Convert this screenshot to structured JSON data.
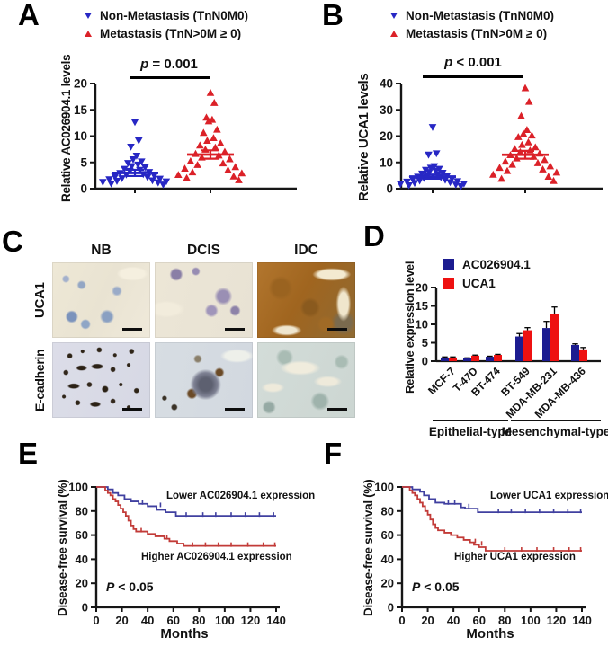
{
  "panels": {
    "A": {
      "label": "A",
      "sig_var": "p",
      "sig_rest": " = 0.001"
    },
    "B": {
      "label": "B",
      "sig_var": "p",
      "sig_rest": " < 0.001"
    },
    "C": {
      "label": "C",
      "columns": [
        "NB",
        "DCIS",
        "IDC"
      ],
      "rows": [
        "UCA1",
        "E-cadherin"
      ]
    },
    "D": {
      "label": "D"
    },
    "E": {
      "label": "E",
      "p_var": "P",
      "p_rest": " < 0.05"
    },
    "F": {
      "label": "F",
      "p_var": "P",
      "p_rest": " < 0.05"
    }
  },
  "colors": {
    "scatter_blue": "#2727C4",
    "scatter_red": "#DB2128",
    "bar_blue": "#1C1C90",
    "bar_red": "#EE1111",
    "km_blue": "#4040A0",
    "km_red": "#C23B38",
    "axis": "#161616"
  },
  "chart_data": [
    {
      "id": "A",
      "type": "scatter",
      "ylabel": "Relative AC026904.1 levels",
      "ylim": [
        0,
        20
      ],
      "yticks": [
        0,
        5,
        10,
        15,
        20
      ],
      "significance": "p = 0.001",
      "groups": [
        {
          "name": "Non-Metastasis (TnN0M0)",
          "marker": "triangle-down",
          "color": "#2727C4",
          "mean": 3.0,
          "sem": 0.6,
          "values": [
            12.7,
            9.2,
            8.0,
            6.3,
            5.6,
            5.2,
            4.9,
            4.6,
            4.3,
            4.1,
            3.8,
            3.6,
            3.4,
            3.2,
            3.0,
            2.8,
            2.7,
            2.5,
            2.3,
            2.2,
            2.0,
            1.9,
            1.8,
            1.6,
            1.5,
            1.4,
            1.3,
            1.2,
            1.0,
            0.8
          ]
        },
        {
          "name": "Metastasis (TnN>0M ≥ 0)",
          "marker": "triangle-up",
          "color": "#DB2128",
          "mean": 6.5,
          "sem": 0.8,
          "values": [
            18.2,
            16.3,
            13.5,
            13.1,
            12.8,
            11.2,
            10.6,
            9.6,
            9.1,
            8.6,
            8.2,
            7.8,
            7.4,
            7.0,
            6.6,
            6.3,
            5.9,
            5.6,
            5.2,
            4.8,
            4.5,
            4.1,
            3.8,
            3.5,
            3.1,
            2.9,
            2.6,
            2.3,
            2.0,
            1.6
          ]
        }
      ]
    },
    {
      "id": "B",
      "type": "scatter",
      "ylabel": "Relative UCA1 levels",
      "ylim": [
        0,
        40
      ],
      "yticks": [
        0,
        10,
        20,
        30,
        40
      ],
      "significance": "p < 0.001",
      "groups": [
        {
          "name": "Non-Metastasis (TnN0M0)",
          "marker": "triangle-down",
          "color": "#2727C4",
          "mean": 4.6,
          "sem": 0.8,
          "values": [
            23.5,
            13.5,
            13.0,
            8.6,
            8.0,
            7.6,
            7.2,
            6.8,
            6.4,
            6.1,
            5.8,
            5.5,
            5.2,
            4.9,
            4.6,
            4.4,
            4.1,
            3.9,
            3.6,
            3.4,
            3.1,
            2.9,
            2.7,
            2.5,
            2.2,
            2.0,
            1.8,
            1.6,
            1.3,
            1.0
          ]
        },
        {
          "name": "Metastasis (TnN>0M ≥ 0)",
          "marker": "triangle-up",
          "color": "#DB2128",
          "mean": 12.9,
          "sem": 1.5,
          "values": [
            38.2,
            33.0,
            27.6,
            22.3,
            20.8,
            20.2,
            19.6,
            17.6,
            16.6,
            15.7,
            15.1,
            14.5,
            13.9,
            13.3,
            12.7,
            12.1,
            11.5,
            10.9,
            10.3,
            9.7,
            9.1,
            8.5,
            7.9,
            7.3,
            6.7,
            6.1,
            5.3,
            4.5,
            3.7,
            2.9
          ]
        }
      ]
    },
    {
      "id": "D",
      "type": "bar",
      "ylabel": "Relative expression level",
      "ylim": [
        0,
        20
      ],
      "yticks": [
        0,
        5,
        10,
        15,
        20
      ],
      "categories": [
        "MCF-7",
        "T-47D",
        "BT-474",
        "BT-549",
        "MDA-MB-231",
        "MDA-MB-436"
      ],
      "group_labels": [
        {
          "label": "Epithelial-type",
          "span": [
            0,
            2
          ]
        },
        {
          "label": "Mesenchymal-type",
          "span": [
            3,
            5
          ]
        }
      ],
      "series": [
        {
          "name": "AC026904.1",
          "color": "#1C1C90",
          "values": [
            1.0,
            0.8,
            1.2,
            6.7,
            9.0,
            4.4
          ],
          "errors": [
            0.15,
            0.1,
            0.15,
            0.8,
            1.8,
            0.3
          ]
        },
        {
          "name": "UCA1",
          "color": "#EE1111",
          "values": [
            1.0,
            1.5,
            1.7,
            8.4,
            12.7,
            3.2
          ],
          "errors": [
            0.15,
            0.15,
            0.15,
            0.7,
            2.0,
            0.5
          ]
        }
      ]
    },
    {
      "id": "E",
      "type": "line",
      "subtype": "kaplan-meier",
      "xlabel": "Months",
      "ylabel": "Disease-free survival (%)",
      "xlim": [
        0,
        140
      ],
      "xticks": [
        0,
        20,
        40,
        60,
        80,
        100,
        120,
        140
      ],
      "ylim": [
        0,
        100
      ],
      "yticks": [
        0,
        20,
        40,
        60,
        80,
        100
      ],
      "p_text": "P < 0.05",
      "series": [
        {
          "name": "Lower AC026904.1 expression",
          "color": "#4040A0",
          "steps": [
            [
              0,
              100
            ],
            [
              9,
              100
            ],
            [
              9,
              98
            ],
            [
              13,
              98
            ],
            [
              13,
              95
            ],
            [
              17,
              95
            ],
            [
              17,
              93
            ],
            [
              22,
              93
            ],
            [
              22,
              90
            ],
            [
              27,
              90
            ],
            [
              27,
              88
            ],
            [
              33,
              88
            ],
            [
              33,
              86
            ],
            [
              40,
              86
            ],
            [
              40,
              84
            ],
            [
              47,
              84
            ],
            [
              47,
              81
            ],
            [
              54,
              81
            ],
            [
              54,
              79
            ],
            [
              62,
              79
            ],
            [
              62,
              76
            ],
            [
              140,
              76
            ]
          ],
          "censors": [
            [
              36,
              86
            ],
            [
              50,
              84
            ],
            [
              70,
              76
            ],
            [
              83,
              76
            ],
            [
              93,
              76
            ],
            [
              105,
              76
            ],
            [
              116,
              76
            ],
            [
              127,
              76
            ],
            [
              138,
              76
            ]
          ]
        },
        {
          "name": "Higher AC026904.1 expression",
          "color": "#C23B38",
          "steps": [
            [
              0,
              100
            ],
            [
              7,
              100
            ],
            [
              7,
              97
            ],
            [
              9,
              97
            ],
            [
              9,
              95
            ],
            [
              11,
              95
            ],
            [
              11,
              93
            ],
            [
              13,
              93
            ],
            [
              13,
              90
            ],
            [
              15,
              90
            ],
            [
              15,
              88
            ],
            [
              17,
              88
            ],
            [
              17,
              85
            ],
            [
              19,
              85
            ],
            [
              19,
              82
            ],
            [
              21,
              82
            ],
            [
              21,
              79
            ],
            [
              23,
              79
            ],
            [
              23,
              76
            ],
            [
              25,
              76
            ],
            [
              25,
              72
            ],
            [
              27,
              72
            ],
            [
              27,
              68
            ],
            [
              29,
              68
            ],
            [
              29,
              65
            ],
            [
              31,
              65
            ],
            [
              31,
              63
            ],
            [
              40,
              63
            ],
            [
              40,
              61
            ],
            [
              46,
              61
            ],
            [
              46,
              59
            ],
            [
              53,
              59
            ],
            [
              53,
              57
            ],
            [
              57,
              57
            ],
            [
              57,
              55
            ],
            [
              63,
              55
            ],
            [
              63,
              53
            ],
            [
              68,
              53
            ],
            [
              68,
              51
            ],
            [
              140,
              51
            ]
          ],
          "censors": [
            [
              35,
              63
            ],
            [
              55,
              57
            ],
            [
              75,
              51
            ],
            [
              85,
              51
            ],
            [
              95,
              51
            ],
            [
              105,
              51
            ],
            [
              118,
              51
            ],
            [
              130,
              51
            ],
            [
              139,
              51
            ]
          ]
        }
      ]
    },
    {
      "id": "F",
      "type": "line",
      "subtype": "kaplan-meier",
      "xlabel": "Months",
      "ylabel": "Disease-free survival (%)",
      "xlim": [
        0,
        140
      ],
      "xticks": [
        0,
        20,
        40,
        60,
        80,
        100,
        120,
        140
      ],
      "ylim": [
        0,
        100
      ],
      "yticks": [
        0,
        20,
        40,
        60,
        80,
        100
      ],
      "p_text": "P < 0.05",
      "series": [
        {
          "name": "Lower UCA1 expression",
          "color": "#4040A0",
          "steps": [
            [
              0,
              100
            ],
            [
              8,
              100
            ],
            [
              8,
              98
            ],
            [
              14,
              98
            ],
            [
              14,
              96
            ],
            [
              17,
              96
            ],
            [
              17,
              93
            ],
            [
              21,
              93
            ],
            [
              21,
              90
            ],
            [
              26,
              90
            ],
            [
              26,
              87
            ],
            [
              33,
              87
            ],
            [
              33,
              86
            ],
            [
              46,
              86
            ],
            [
              46,
              83
            ],
            [
              49,
              83
            ],
            [
              49,
              82
            ],
            [
              59,
              82
            ],
            [
              59,
              79
            ],
            [
              140,
              79
            ]
          ],
          "censors": [
            [
              36,
              86
            ],
            [
              41,
              86
            ],
            [
              52,
              83
            ],
            [
              75,
              79
            ],
            [
              85,
              79
            ],
            [
              96,
              79
            ],
            [
              107,
              79
            ],
            [
              118,
              79
            ],
            [
              129,
              79
            ],
            [
              139,
              79
            ]
          ]
        },
        {
          "name": "Higher UCA1 expression",
          "color": "#C23B38",
          "steps": [
            [
              0,
              100
            ],
            [
              6,
              100
            ],
            [
              6,
              97
            ],
            [
              8,
              97
            ],
            [
              8,
              95
            ],
            [
              10,
              95
            ],
            [
              10,
              93
            ],
            [
              12,
              93
            ],
            [
              12,
              90
            ],
            [
              14,
              90
            ],
            [
              14,
              87
            ],
            [
              16,
              87
            ],
            [
              16,
              84
            ],
            [
              18,
              84
            ],
            [
              18,
              80
            ],
            [
              20,
              80
            ],
            [
              20,
              77
            ],
            [
              22,
              77
            ],
            [
              22,
              73
            ],
            [
              24,
              73
            ],
            [
              24,
              69
            ],
            [
              26,
              69
            ],
            [
              26,
              66
            ],
            [
              28,
              66
            ],
            [
              28,
              64
            ],
            [
              33,
              64
            ],
            [
              33,
              62
            ],
            [
              38,
              62
            ],
            [
              38,
              60
            ],
            [
              43,
              60
            ],
            [
              43,
              58
            ],
            [
              48,
              58
            ],
            [
              48,
              56
            ],
            [
              53,
              56
            ],
            [
              53,
              54
            ],
            [
              56,
              54
            ],
            [
              56,
              52
            ],
            [
              60,
              52
            ],
            [
              60,
              50
            ],
            [
              65,
              50
            ],
            [
              65,
              47
            ],
            [
              140,
              47
            ]
          ],
          "censors": [
            [
              57,
              54
            ],
            [
              62,
              52
            ],
            [
              80,
              47
            ],
            [
              93,
              47
            ],
            [
              105,
              47
            ],
            [
              118,
              47
            ],
            [
              130,
              47
            ],
            [
              139,
              47
            ]
          ]
        }
      ]
    }
  ]
}
